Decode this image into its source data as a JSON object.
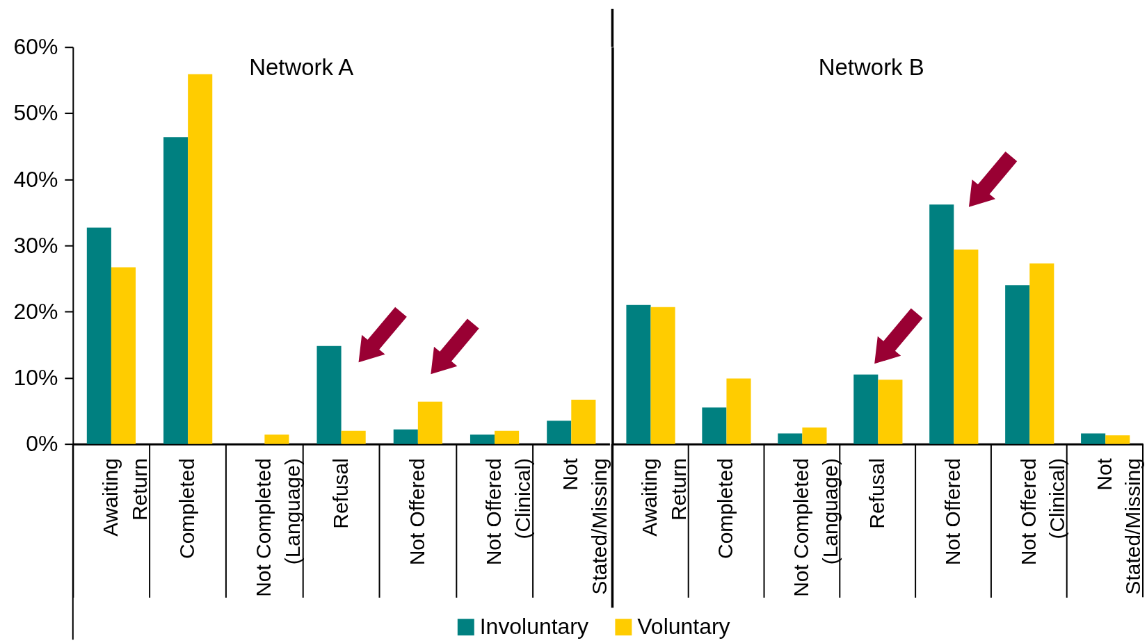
{
  "chart_data": [
    {
      "type": "bar",
      "title": "Network A",
      "categories": [
        "Awaiting Return",
        "Completed",
        "Not Completed (Language)",
        "Refusal",
        "Not Offered",
        "Not Offered (Clinical)",
        "Not Stated/Missing"
      ],
      "series": [
        {
          "name": "Involuntary",
          "color": "#008080",
          "values": [
            32.7,
            46.4,
            null,
            14.8,
            2.2,
            1.4,
            3.5
          ]
        },
        {
          "name": "Voluntary",
          "color": "#ffcc00",
          "values": [
            26.7,
            55.9,
            1.4,
            2.0,
            6.4,
            2.0,
            6.7
          ]
        }
      ],
      "ylim": [
        0,
        60
      ],
      "yticks": [
        {
          "value": 0,
          "label": "0%"
        },
        {
          "value": 10,
          "label": "10%"
        },
        {
          "value": 20,
          "label": "20%"
        },
        {
          "value": 30,
          "label": "30%"
        },
        {
          "value": 40,
          "label": "40%"
        },
        {
          "value": 50,
          "label": "50%"
        },
        {
          "value": 60,
          "label": "60%"
        }
      ],
      "legend": "bottom"
    },
    {
      "type": "bar",
      "title": "Network B",
      "categories": [
        "Awaiting Return",
        "Completed",
        "Not Completed (Language)",
        "Refusal",
        "Not Offered",
        "Not Offered (Clinical)",
        "Not Stated/Missing"
      ],
      "series": [
        {
          "name": "Involuntary",
          "color": "#008080",
          "values": [
            21.0,
            5.5,
            1.6,
            10.5,
            36.2,
            24.0,
            1.6
          ]
        },
        {
          "name": "Voluntary",
          "color": "#ffcc00",
          "values": [
            20.7,
            9.9,
            2.5,
            9.7,
            29.4,
            27.3,
            1.3
          ]
        }
      ],
      "ylim": [
        0,
        60
      ],
      "legend": "bottom",
      "tick_labels": "x"
    }
  ]
}
